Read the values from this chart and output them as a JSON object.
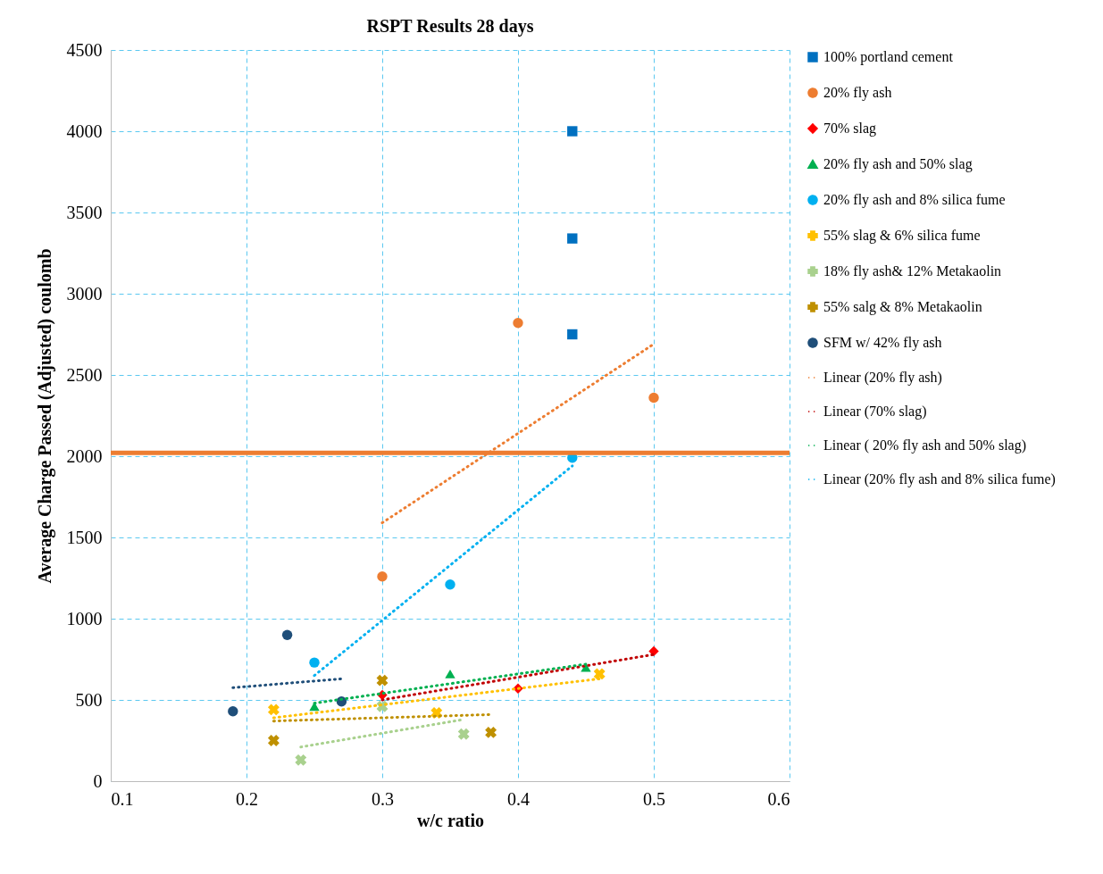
{
  "chart_data": {
    "type": "scatter",
    "title": "RSPT Results 28 days",
    "xlabel": "w/c ratio",
    "ylabel": "Average Charge Passed (Adjusted) coulomb",
    "xlim": [
      0.1,
      0.6
    ],
    "xticks": [
      0.1,
      0.2,
      0.3,
      0.4,
      0.5,
      0.6
    ],
    "ylim": [
      0,
      4500
    ],
    "yticks": [
      0,
      500,
      1000,
      1500,
      2000,
      2500,
      3000,
      3500,
      4000,
      4500
    ],
    "grid": true,
    "legend": "right",
    "ref_lines": [
      {
        "axis": "y",
        "value": 2020,
        "color": "#ed7d31"
      }
    ],
    "series": [
      {
        "name": "100% portland cement",
        "color": "#0070c0",
        "marker": "square",
        "x": [
          0.44,
          0.44,
          0.44
        ],
        "values": [
          4000,
          3340,
          2750
        ]
      },
      {
        "name": "20% fly ash",
        "color": "#ed7d31",
        "marker": "circle",
        "x": [
          0.3,
          0.4,
          0.5
        ],
        "values": [
          1260,
          2820,
          2360
        ]
      },
      {
        "name": "70% slag",
        "color": "#ff0000",
        "marker": "diamond",
        "x": [
          0.3,
          0.4,
          0.5
        ],
        "values": [
          530,
          570,
          800
        ]
      },
      {
        "name": " 20% fly ash and 50% slag",
        "color": "#00b050",
        "marker": "triangle",
        "x": [
          0.25,
          0.35,
          0.45
        ],
        "values": [
          460,
          660,
          700
        ]
      },
      {
        "name": "20% fly ash and 8% silica fume",
        "color": "#00b0f0",
        "marker": "circle",
        "x": [
          0.25,
          0.35,
          0.44
        ],
        "values": [
          730,
          1210,
          1990
        ]
      },
      {
        "name": "55% slag & 6% silica fume",
        "color": "#ffc000",
        "marker": "cross",
        "x": [
          0.22,
          0.34,
          0.46
        ],
        "values": [
          440,
          420,
          660
        ]
      },
      {
        "name": "18% fly ash& 12% Metakaolin",
        "color": "#a9d18e",
        "marker": "cross",
        "x": [
          0.24,
          0.3,
          0.36
        ],
        "values": [
          130,
          460,
          290
        ]
      },
      {
        "name": "55% salg & 8% Metakaolin",
        "color": "#bf9000",
        "marker": "cross",
        "x": [
          0.22,
          0.3,
          0.38
        ],
        "values": [
          250,
          620,
          300
        ]
      },
      {
        "name": "SFM w/ 42% fly ash",
        "color": "#1f4e79",
        "marker": "circle",
        "x": [
          0.19,
          0.23,
          0.27
        ],
        "values": [
          430,
          900,
          490
        ]
      },
      {
        "type": "line",
        "name": "Linear (20% fly ash)",
        "color": "#ed7d31",
        "line_style": "dotted",
        "x": [
          0.3,
          0.5
        ],
        "values": [
          1590,
          2690
        ]
      },
      {
        "type": "line",
        "name": "Linear (70% slag)",
        "color": "#c00000",
        "line_style": "dotted",
        "x": [
          0.3,
          0.5
        ],
        "values": [
          500,
          780
        ]
      },
      {
        "type": "line",
        "name": "Linear ( 20% fly ash and 50% slag)",
        "color": "#00b050",
        "line_style": "dotted",
        "x": [
          0.25,
          0.45
        ],
        "values": [
          480,
          720
        ]
      },
      {
        "type": "line",
        "name": "Linear (20% fly ash and 8% silica fume)",
        "color": "#00b0f0",
        "line_style": "dotted",
        "x": [
          0.25,
          0.44
        ],
        "values": [
          650,
          1940
        ]
      },
      {
        "type": "line",
        "color": "#1f4e79",
        "line_style": "dotted",
        "x": [
          0.19,
          0.27
        ],
        "values": [
          575,
          630
        ]
      },
      {
        "type": "line",
        "color": "#ffc000",
        "line_style": "dotted",
        "x": [
          0.22,
          0.46
        ],
        "values": [
          390,
          630
        ]
      },
      {
        "type": "line",
        "color": "#a9d18e",
        "line_style": "dotted",
        "x": [
          0.24,
          0.36
        ],
        "values": [
          210,
          380
        ]
      },
      {
        "type": "line",
        "color": "#bf9000",
        "line_style": "dotted",
        "x": [
          0.22,
          0.38
        ],
        "values": [
          370,
          410
        ]
      }
    ]
  }
}
